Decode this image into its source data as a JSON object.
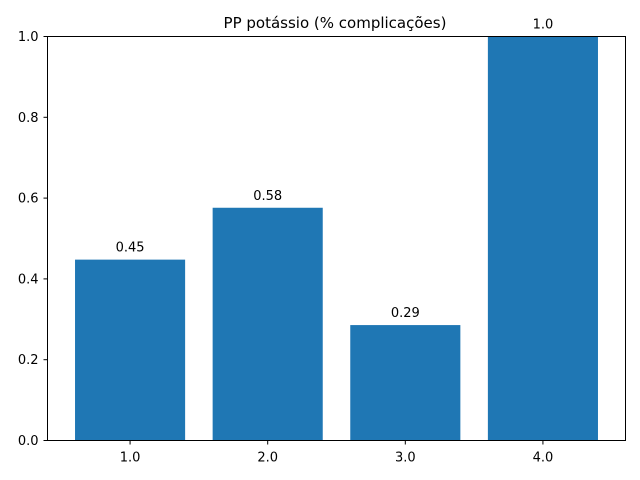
{
  "chart_data": {
    "type": "bar",
    "title": "PP potássio (% complicações)",
    "xlabel": "",
    "ylabel": "",
    "categories": [
      "1.0",
      "2.0",
      "3.0",
      "4.0"
    ],
    "values": [
      0.4477,
      0.5761,
      0.2857,
      1.0
    ],
    "bar_labels": [
      "0.45",
      "0.58",
      "0.29",
      "1.0"
    ],
    "ylim": [
      0,
      1.0
    ],
    "yticks": [
      "0.0",
      "0.2",
      "0.4",
      "0.6",
      "0.8",
      "1.0"
    ],
    "grid": false,
    "bar_color": "#1f77b4"
  }
}
